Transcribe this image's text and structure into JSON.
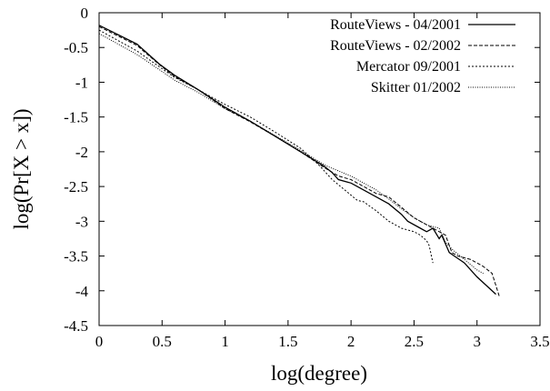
{
  "chart_data": {
    "type": "line",
    "title": "",
    "xlabel": "log(degree)",
    "ylabel": "log(Pr[X > x])",
    "xlim": [
      0,
      3.5
    ],
    "ylim": [
      -4.5,
      0
    ],
    "x_ticks": [
      "0",
      "0.5",
      "1",
      "1.5",
      "2",
      "2.5",
      "3",
      "3.5"
    ],
    "y_ticks": [
      "0",
      "-0.5",
      "-1",
      "-1.5",
      "-2",
      "-2.5",
      "-3",
      "-3.5",
      "-4",
      "-4.5"
    ],
    "grid": false,
    "legend_position": "top-right",
    "series": [
      {
        "name": "RouteViews - 04/2001",
        "line_style": "solid",
        "points": [
          [
            0,
            -0.18
          ],
          [
            0.3,
            -0.45
          ],
          [
            0.48,
            -0.74
          ],
          [
            0.6,
            -0.9
          ],
          [
            0.78,
            -1.1
          ],
          [
            0.9,
            -1.24
          ],
          [
            1.0,
            -1.36
          ],
          [
            1.2,
            -1.56
          ],
          [
            1.4,
            -1.78
          ],
          [
            1.6,
            -2.0
          ],
          [
            1.78,
            -2.2
          ],
          [
            1.85,
            -2.3
          ],
          [
            1.9,
            -2.4
          ],
          [
            2.0,
            -2.45
          ],
          [
            2.1,
            -2.55
          ],
          [
            2.2,
            -2.65
          ],
          [
            2.3,
            -2.75
          ],
          [
            2.4,
            -2.9
          ],
          [
            2.45,
            -3.0
          ],
          [
            2.55,
            -3.1
          ],
          [
            2.6,
            -3.15
          ],
          [
            2.65,
            -3.1
          ],
          [
            2.7,
            -3.25
          ],
          [
            2.72,
            -3.2
          ],
          [
            2.78,
            -3.45
          ],
          [
            2.82,
            -3.5
          ],
          [
            2.9,
            -3.6
          ],
          [
            3.0,
            -3.8
          ],
          [
            3.15,
            -4.05
          ]
        ]
      },
      {
        "name": "RouteViews - 02/2002",
        "line_style": "dashed",
        "points": [
          [
            0,
            -0.2
          ],
          [
            0.3,
            -0.47
          ],
          [
            0.48,
            -0.75
          ],
          [
            0.6,
            -0.92
          ],
          [
            0.78,
            -1.1
          ],
          [
            0.9,
            -1.25
          ],
          [
            1.0,
            -1.38
          ],
          [
            1.2,
            -1.57
          ],
          [
            1.4,
            -1.78
          ],
          [
            1.6,
            -2.0
          ],
          [
            1.78,
            -2.22
          ],
          [
            1.9,
            -2.35
          ],
          [
            2.0,
            -2.4
          ],
          [
            2.1,
            -2.5
          ],
          [
            2.2,
            -2.6
          ],
          [
            2.3,
            -2.65
          ],
          [
            2.4,
            -2.8
          ],
          [
            2.5,
            -2.95
          ],
          [
            2.6,
            -3.05
          ],
          [
            2.7,
            -3.15
          ],
          [
            2.75,
            -3.2
          ],
          [
            2.8,
            -3.45
          ],
          [
            2.85,
            -3.5
          ],
          [
            2.95,
            -3.55
          ],
          [
            3.05,
            -3.65
          ],
          [
            3.12,
            -3.75
          ],
          [
            3.18,
            -4.1
          ]
        ]
      },
      {
        "name": "Mercator 09/2001",
        "line_style": "dotted",
        "points": [
          [
            0,
            -0.25
          ],
          [
            0.3,
            -0.55
          ],
          [
            0.48,
            -0.78
          ],
          [
            0.6,
            -0.93
          ],
          [
            0.78,
            -1.1
          ],
          [
            0.9,
            -1.22
          ],
          [
            1.0,
            -1.32
          ],
          [
            1.2,
            -1.5
          ],
          [
            1.4,
            -1.72
          ],
          [
            1.6,
            -1.95
          ],
          [
            1.75,
            -2.2
          ],
          [
            1.85,
            -2.4
          ],
          [
            1.95,
            -2.55
          ],
          [
            2.05,
            -2.7
          ],
          [
            2.1,
            -2.72
          ],
          [
            2.2,
            -2.85
          ],
          [
            2.3,
            -3.0
          ],
          [
            2.4,
            -3.1
          ],
          [
            2.5,
            -3.15
          ],
          [
            2.55,
            -3.2
          ],
          [
            2.6,
            -3.28
          ],
          [
            2.62,
            -3.35
          ],
          [
            2.65,
            -3.6
          ]
        ]
      },
      {
        "name": "Skitter 01/2002",
        "line_style": "fine-dotted",
        "points": [
          [
            0,
            -0.3
          ],
          [
            0.3,
            -0.6
          ],
          [
            0.48,
            -0.82
          ],
          [
            0.6,
            -0.97
          ],
          [
            0.78,
            -1.14
          ],
          [
            0.9,
            -1.27
          ],
          [
            1.0,
            -1.38
          ],
          [
            1.2,
            -1.56
          ],
          [
            1.4,
            -1.77
          ],
          [
            1.6,
            -1.98
          ],
          [
            1.8,
            -2.2
          ],
          [
            2.0,
            -2.35
          ],
          [
            2.1,
            -2.45
          ],
          [
            2.2,
            -2.55
          ],
          [
            2.3,
            -2.68
          ],
          [
            2.4,
            -2.82
          ],
          [
            2.5,
            -2.95
          ],
          [
            2.6,
            -3.05
          ],
          [
            2.7,
            -3.1
          ],
          [
            2.75,
            -3.3
          ],
          [
            2.8,
            -3.4
          ],
          [
            2.9,
            -3.55
          ],
          [
            3.0,
            -3.7
          ],
          [
            3.05,
            -3.75
          ]
        ]
      }
    ]
  }
}
